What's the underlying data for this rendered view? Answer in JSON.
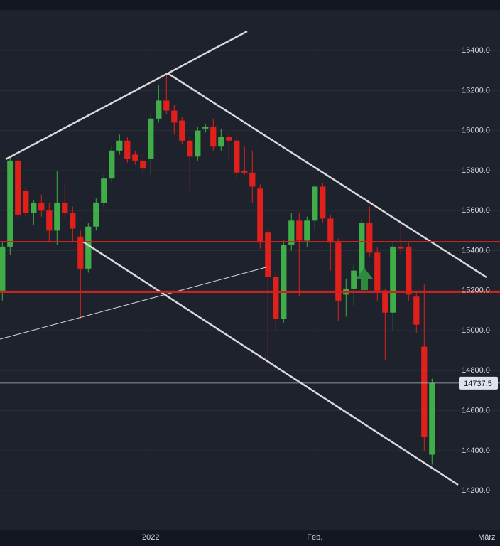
{
  "chart_data": {
    "type": "candlestick",
    "up_color": "#3fae49",
    "down_color": "#e0201b",
    "grid": true,
    "xlim": [
      -0.3,
      63.7
    ],
    "xticks": [
      {
        "value": 19,
        "label": "2022"
      },
      {
        "value": 40,
        "label": "Feb."
      },
      {
        "value": 62,
        "label": "März"
      }
    ],
    "ylim": [
      14005,
      16603
    ],
    "yticks": [
      {
        "value": 14200,
        "label": "14200.0"
      },
      {
        "value": 14400,
        "label": "14400.0"
      },
      {
        "value": 14600,
        "label": "14600.0"
      },
      {
        "value": 14800,
        "label": "14800.0"
      },
      {
        "value": 15000,
        "label": "15000.0"
      },
      {
        "value": 15200,
        "label": "15200.0"
      },
      {
        "value": 15400,
        "label": "15400.0"
      },
      {
        "value": 15600,
        "label": "15600.0"
      },
      {
        "value": 15800,
        "label": "15800.0"
      },
      {
        "value": 16000,
        "label": "16000.0"
      },
      {
        "value": 16200,
        "label": "16200.0"
      },
      {
        "value": 16400,
        "label": "16400.0"
      }
    ],
    "open": [
      15200,
      15420,
      15850,
      15700,
      15590,
      15640,
      15600,
      15500,
      15640,
      15590,
      15470,
      15310,
      15520,
      15640,
      15760,
      15900,
      15950,
      15880,
      15850,
      15860,
      16060,
      16150,
      16100,
      16050,
      15950,
      15870,
      16010,
      16020,
      15920,
      15970,
      15950,
      15800,
      15790,
      15710,
      15490,
      15270,
      15060,
      15430,
      15550,
      15450,
      15550,
      15720,
      15560,
      15440,
      15180,
      15210,
      15260,
      15540,
      15390,
      15200,
      15090,
      15420,
      15420,
      15170,
      14920,
      14380
    ],
    "high": [
      15440,
      15870,
      15870,
      15720,
      15650,
      15680,
      15640,
      15800,
      15730,
      15620,
      15500,
      15540,
      15660,
      15780,
      15920,
      15980,
      15970,
      15900,
      15880,
      16080,
      16230,
      16290,
      16130,
      16070,
      15970,
      16020,
      16030,
      16060,
      16010,
      15990,
      15970,
      15920,
      15900,
      15730,
      15510,
      15290,
      15450,
      15590,
      15590,
      15570,
      15730,
      15740,
      15580,
      15460,
      15260,
      15330,
      15560,
      15620,
      15420,
      15210,
      15440,
      15540,
      15440,
      15190,
      15230,
      14760
    ],
    "low": [
      15150,
      15380,
      15560,
      15570,
      15530,
      15570,
      15440,
      15430,
      15560,
      15440,
      15060,
      15290,
      15500,
      15620,
      15740,
      15880,
      15840,
      15830,
      15780,
      15780,
      16040,
      16080,
      15980,
      15930,
      15700,
      15850,
      15990,
      15900,
      15900,
      15850,
      15760,
      15780,
      15640,
      15410,
      14850,
      15000,
      15040,
      15400,
      15170,
      15420,
      15500,
      15540,
      15300,
      15050,
      15070,
      15120,
      15200,
      15370,
      15150,
      14850,
      15000,
      15380,
      15150,
      14990,
      14400,
      14330
    ],
    "close": [
      15420,
      15850,
      15580,
      15590,
      15640,
      15600,
      15500,
      15640,
      15590,
      15510,
      15310,
      15520,
      15640,
      15760,
      15900,
      15950,
      15860,
      15850,
      15810,
      16060,
      16150,
      16100,
      16040,
      15950,
      15870,
      16000,
      16020,
      15920,
      15970,
      15950,
      15790,
      15790,
      15720,
      15440,
      15270,
      15060,
      15430,
      15550,
      15450,
      15550,
      15720,
      15560,
      15440,
      15150,
      15210,
      15300,
      15540,
      15390,
      15200,
      15090,
      15420,
      15410,
      15180,
      15030,
      14470,
      14737.5
    ]
  }
}
